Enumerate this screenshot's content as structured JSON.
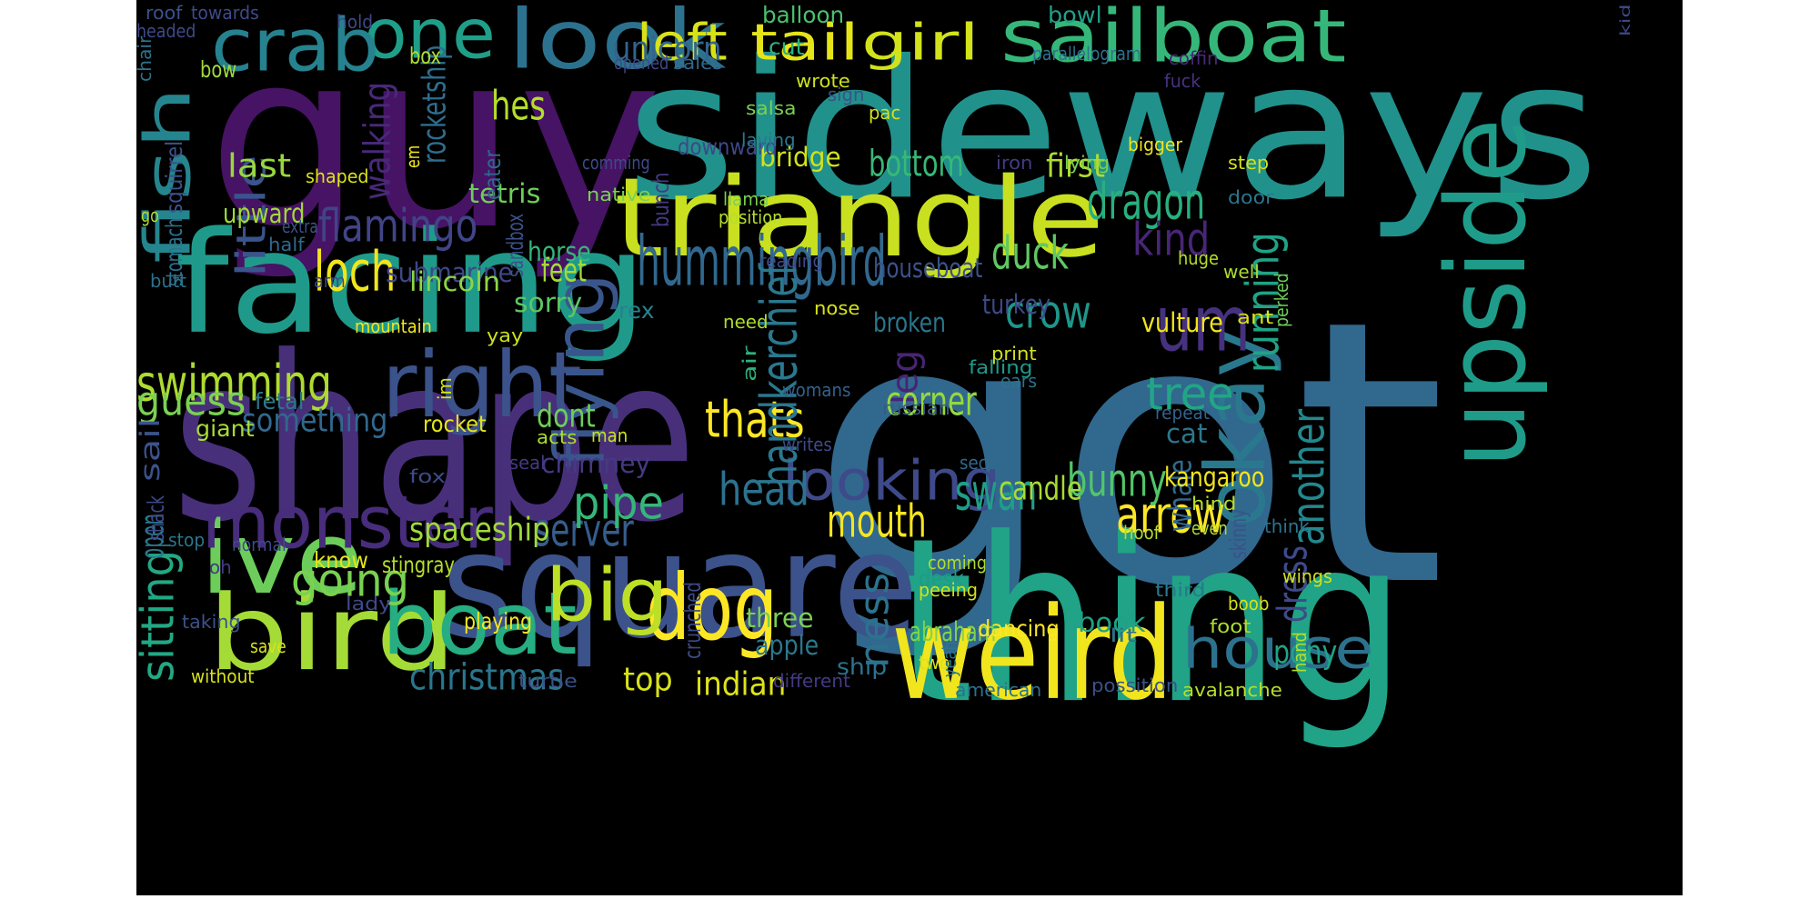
{
  "words": [
    {
      "text": "got",
      "c": "#31688e"
    },
    {
      "text": "guy",
      "c": "#471365"
    },
    {
      "text": "sideways",
      "c": "#21918c"
    },
    {
      "text": "shape",
      "c": "#482f7a"
    },
    {
      "text": "thing",
      "c": "#20a386"
    },
    {
      "text": "square",
      "c": "#3b528b"
    },
    {
      "text": "facing",
      "c": "#1f9a8a"
    },
    {
      "text": "triangle",
      "c": "#c8e020"
    },
    {
      "text": "upside",
      "c": "#1e9c89"
    },
    {
      "text": "weird",
      "c": "#f1e51d"
    },
    {
      "text": "bird",
      "c": "#a5db36"
    },
    {
      "text": "ive",
      "c": "#6ccd5a"
    },
    {
      "text": "right",
      "c": "#3b528b"
    },
    {
      "text": "okay",
      "c": "#2a788e"
    },
    {
      "text": "sailboat",
      "c": "#35b779"
    },
    {
      "text": "look",
      "c": "#2c728e"
    },
    {
      "text": "one",
      "c": "#1f9e89"
    },
    {
      "text": "crab",
      "c": "#26828e"
    },
    {
      "text": "boat",
      "c": "#26ad81"
    },
    {
      "text": "dog",
      "c": "#fde725"
    },
    {
      "text": "um",
      "c": "#46317e"
    },
    {
      "text": "flying",
      "c": "#39568c"
    },
    {
      "text": "monster",
      "c": "#472d7b"
    },
    {
      "text": "big",
      "c": "#bddf26"
    },
    {
      "text": "fish",
      "c": "#25858e"
    },
    {
      "text": "house",
      "c": "#2c728e"
    },
    {
      "text": "hummingbird",
      "c": "#31688e"
    },
    {
      "text": "tail",
      "c": "#e5e419"
    },
    {
      "text": "girl",
      "c": "#d2e21b"
    },
    {
      "text": "left",
      "c": "#d8e219"
    },
    {
      "text": "swimming",
      "c": "#addc30"
    },
    {
      "text": "mouth",
      "c": "#f6e620"
    },
    {
      "text": "looking",
      "c": "#3e4a89"
    },
    {
      "text": "thats",
      "c": "#fde725"
    },
    {
      "text": "crow",
      "c": "#1f968b"
    },
    {
      "text": "tree",
      "c": "#21a685"
    },
    {
      "text": "duck",
      "c": "#5ec962"
    },
    {
      "text": "loch",
      "c": "#f1e51d"
    },
    {
      "text": "dragon",
      "c": "#29af7f"
    },
    {
      "text": "flamingo",
      "c": "#414487"
    },
    {
      "text": "handkerchief",
      "c": "#2a788e"
    },
    {
      "text": "arrow",
      "c": "#fde725"
    },
    {
      "text": "swan",
      "c": "#1f9e89"
    },
    {
      "text": "christmas",
      "c": "#2a768e"
    },
    {
      "text": "bunny",
      "c": "#52c569"
    },
    {
      "text": "going",
      "c": "#7ad151"
    },
    {
      "text": "head",
      "c": "#2c728e"
    },
    {
      "text": "server",
      "c": "#365d8d"
    },
    {
      "text": "pipe",
      "c": "#35b779"
    },
    {
      "text": "kind",
      "c": "#482677"
    },
    {
      "text": "running",
      "c": "#20a386"
    },
    {
      "text": "another",
      "c": "#23888e"
    },
    {
      "text": "ness",
      "c": "#2c728e"
    },
    {
      "text": "sitting",
      "c": "#22a884"
    },
    {
      "text": "guess",
      "c": "#7ad151"
    },
    {
      "text": "little",
      "c": "#3a548c"
    },
    {
      "text": "walking",
      "c": "#482979"
    },
    {
      "text": "hes",
      "c": "#b5de2b"
    },
    {
      "text": "leg",
      "c": "#482475"
    },
    {
      "text": "corner",
      "c": "#95d840"
    },
    {
      "text": "bottom",
      "c": "#38b977"
    },
    {
      "text": "something",
      "c": "#31688e"
    },
    {
      "text": "spaceship",
      "c": "#9fda3a"
    },
    {
      "text": "unicorn",
      "c": "#32648e"
    },
    {
      "text": "submarine",
      "c": "#3f4788"
    },
    {
      "text": "candle",
      "c": "#a8db34"
    },
    {
      "text": "dont",
      "c": "#6ece58"
    },
    {
      "text": "chimney",
      "c": "#443a83"
    },
    {
      "text": "feet",
      "c": "#a5db36"
    },
    {
      "text": "last",
      "c": "#99d83d"
    },
    {
      "text": "pony",
      "c": "#20a386"
    },
    {
      "text": "dress",
      "c": "#3e4a89"
    },
    {
      "text": "three",
      "c": "#7ad151"
    },
    {
      "text": "top",
      "c": "#d8e219"
    },
    {
      "text": "indian",
      "c": "#dde318"
    },
    {
      "text": "first",
      "c": "#addc30"
    },
    {
      "text": "cat",
      "c": "#2a788e"
    },
    {
      "text": "rocketship",
      "c": "#2e6e8e"
    },
    {
      "text": "upward",
      "c": "#a2da37"
    },
    {
      "text": "tetris",
      "c": "#6ece58"
    },
    {
      "text": "lincoln",
      "c": "#8bd646"
    },
    {
      "text": "sorry",
      "c": "#5cc863"
    },
    {
      "text": "horse",
      "c": "#35b779"
    },
    {
      "text": "broken",
      "c": "#2a768e"
    },
    {
      "text": "houseboat",
      "c": "#3b528b"
    },
    {
      "text": "turkey",
      "c": "#3e4a89"
    },
    {
      "text": "vulture",
      "c": "#f1e51d"
    },
    {
      "text": "rex",
      "c": "#26828e"
    },
    {
      "text": "whale",
      "c": "#31688e"
    },
    {
      "text": "kangaroo",
      "c": "#f1e51d"
    },
    {
      "text": "abraham",
      "c": "#7fd34e"
    },
    {
      "text": "book",
      "c": "#1fa187"
    },
    {
      "text": "dancing",
      "c": "#fde725"
    },
    {
      "text": "know",
      "c": "#e2e418"
    },
    {
      "text": "stingray",
      "c": "#b5de2b"
    },
    {
      "text": "desk",
      "c": "#1f9a8a"
    },
    {
      "text": "ship",
      "c": "#2c728e"
    },
    {
      "text": "apple",
      "c": "#2a788e"
    },
    {
      "text": "playing",
      "c": "#f6e620"
    },
    {
      "text": "rocket",
      "c": "#e5e419"
    },
    {
      "text": "giant",
      "c": "#a5db36"
    },
    {
      "text": "fetal",
      "c": "#2a788e"
    },
    {
      "text": "sail",
      "c": "#3b528b"
    },
    {
      "text": "open",
      "c": "#2a788e"
    },
    {
      "text": "bridge",
      "c": "#d2e21b"
    },
    {
      "text": "downward",
      "c": "#3f4788"
    },
    {
      "text": "cut",
      "c": "#2db27d"
    },
    {
      "text": "balloon",
      "c": "#4ac16d"
    },
    {
      "text": "bowl",
      "c": "#1fa188"
    },
    {
      "text": "box",
      "c": "#b0dd2f"
    },
    {
      "text": "bow",
      "c": "#a0da39"
    },
    {
      "text": "shaped",
      "c": "#dae319"
    },
    {
      "text": "mountain",
      "c": "#f1e51d"
    },
    {
      "text": "yay",
      "c": "#cae11f"
    },
    {
      "text": "print",
      "c": "#d2e21b"
    },
    {
      "text": "falling",
      "c": "#1f9a8a"
    },
    {
      "text": "ears",
      "c": "#2c728e"
    },
    {
      "text": "nose",
      "c": "#d8e219"
    },
    {
      "text": "womans",
      "c": "#33628d"
    },
    {
      "text": "russian",
      "c": "#38588c"
    },
    {
      "text": "need",
      "c": "#addc30"
    },
    {
      "text": "air",
      "c": "#2db27d"
    },
    {
      "text": "repeat",
      "c": "#33628d"
    },
    {
      "text": "hind",
      "c": "#b8de29"
    },
    {
      "text": "second",
      "c": "#31688e"
    },
    {
      "text": "ant",
      "c": "#d8e219"
    },
    {
      "text": "huge",
      "c": "#b5de2b"
    },
    {
      "text": "perked",
      "c": "#6ece58"
    },
    {
      "text": "well",
      "c": "#addc30"
    },
    {
      "text": "step",
      "c": "#d2e21b"
    },
    {
      "text": "door",
      "c": "#2a768e"
    },
    {
      "text": "bigger",
      "c": "#f1e51d"
    },
    {
      "text": "lying",
      "c": "#7ad151"
    },
    {
      "text": "iron",
      "c": "#443a83"
    },
    {
      "text": "coffin",
      "c": "#482878"
    },
    {
      "text": "fuck",
      "c": "#46337f"
    },
    {
      "text": "parallelogram",
      "c": "#2c728e"
    },
    {
      "text": "sign",
      "c": "#3b528b"
    },
    {
      "text": "pac",
      "c": "#d2e21b"
    },
    {
      "text": "wrote",
      "c": "#cae11f"
    },
    {
      "text": "salsa",
      "c": "#7ad151"
    },
    {
      "text": "laying",
      "c": "#2a788e"
    },
    {
      "text": "sales",
      "c": "#31688e"
    },
    {
      "text": "opened",
      "c": "#3e4a89"
    },
    {
      "text": "hold",
      "c": "#3e4a89"
    },
    {
      "text": "headed",
      "c": "#3e4a89"
    },
    {
      "text": "roof",
      "c": "#3b528b"
    },
    {
      "text": "towards",
      "c": "#3e4a89"
    },
    {
      "text": "chair",
      "c": "#2c728e"
    },
    {
      "text": "kid",
      "c": "#3e4a89"
    },
    {
      "text": "em",
      "c": "#f1e51d"
    },
    {
      "text": "eater",
      "c": "#31688e"
    },
    {
      "text": "comming",
      "c": "#3e4a89"
    },
    {
      "text": "bunch",
      "c": "#443a83"
    },
    {
      "text": "native",
      "c": "#7ad151"
    },
    {
      "text": "llama",
      "c": "#7ad151"
    },
    {
      "text": "position",
      "c": "#b5de2b"
    },
    {
      "text": "sandbox",
      "c": "#3b528b"
    },
    {
      "text": "go",
      "c": "#addc30"
    },
    {
      "text": "squirrel",
      "c": "#3b528b"
    },
    {
      "text": "stomach",
      "c": "#2c728e"
    },
    {
      "text": "extra",
      "c": "#3b528b"
    },
    {
      "text": "half",
      "c": "#31688e"
    },
    {
      "text": "butt",
      "c": "#2c728e"
    },
    {
      "text": "arm",
      "c": "#3e4a89"
    },
    {
      "text": "reading",
      "c": "#3e4a89"
    },
    {
      "text": "im",
      "c": "#d8e219"
    },
    {
      "text": "man",
      "c": "#cae11f"
    },
    {
      "text": "acts",
      "c": "#addc30"
    },
    {
      "text": "writes",
      "c": "#3e4a89"
    },
    {
      "text": "seal",
      "c": "#443a83"
    },
    {
      "text": "fox",
      "c": "#3e4a89"
    },
    {
      "text": "shack",
      "c": "#3e4a89"
    },
    {
      "text": "skinny",
      "c": "#3b528b"
    },
    {
      "text": "think",
      "c": "#2c728e"
    },
    {
      "text": "even",
      "c": "#addc30"
    },
    {
      "text": "hoof",
      "c": "#b5de2b"
    },
    {
      "text": "stop",
      "c": "#2a768e"
    },
    {
      "text": "normal",
      "c": "#3e4a89"
    },
    {
      "text": "oh",
      "c": "#443a83"
    },
    {
      "text": "lady",
      "c": "#3e4a89"
    },
    {
      "text": "peeing",
      "c": "#d2e21b"
    },
    {
      "text": "crunched",
      "c": "#3e4a89"
    },
    {
      "text": "coming",
      "c": "#addc30"
    },
    {
      "text": "wings",
      "c": "#d2e21b"
    },
    {
      "text": "third",
      "c": "#2a788e"
    },
    {
      "text": "boob",
      "c": "#d8e219"
    },
    {
      "text": "taking",
      "c": "#3b528b"
    },
    {
      "text": "save",
      "c": "#d8e219"
    },
    {
      "text": "turtle",
      "c": "#3b528b"
    },
    {
      "text": "without",
      "c": "#d8e219"
    },
    {
      "text": "different",
      "c": "#443a83"
    },
    {
      "text": "two",
      "c": "#d8e219"
    },
    {
      "text": "yeah",
      "c": "#2a768e"
    },
    {
      "text": "lit",
      "c": "#2c728e"
    },
    {
      "text": "american",
      "c": "#2c728e"
    },
    {
      "text": "possition",
      "c": "#3b528b"
    },
    {
      "text": "avalanche",
      "c": "#b5de2b"
    },
    {
      "text": "foot",
      "c": "#addc30"
    },
    {
      "text": "hand",
      "c": "#b5de2b"
    }
  ]
}
